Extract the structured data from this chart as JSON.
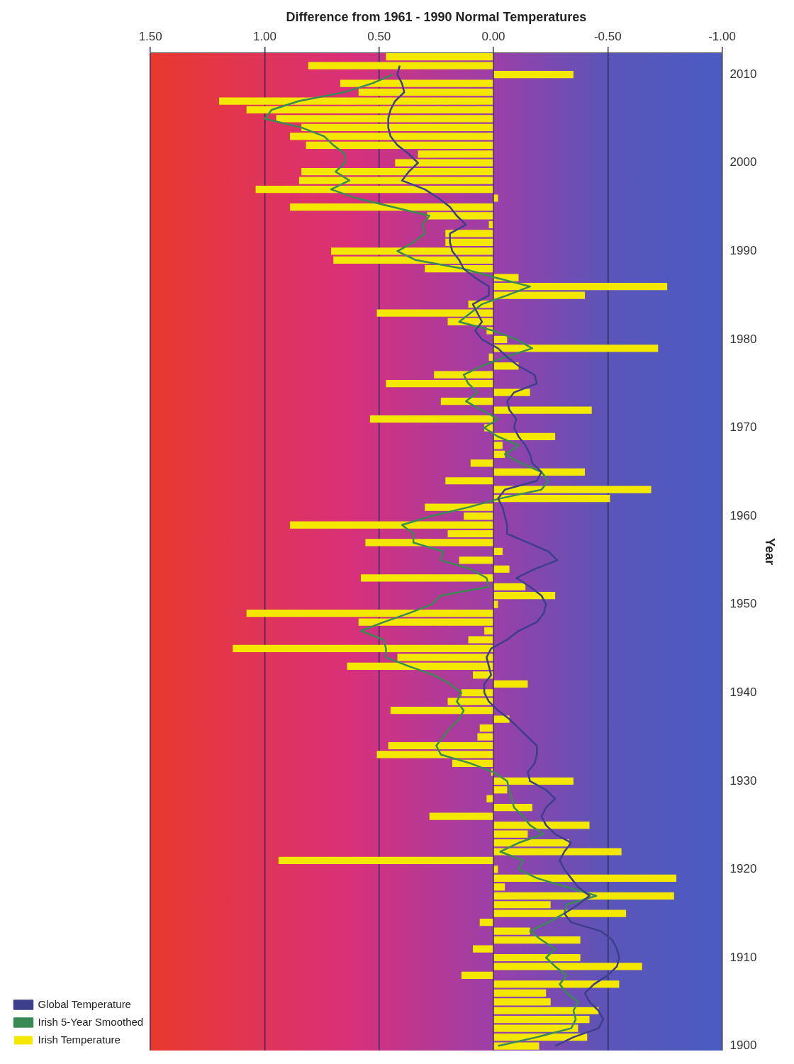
{
  "chart_data": {
    "type": "bar",
    "orientation": "horizontal",
    "xlabel": "Difference from 1961 - 1990 Normal Temperatures",
    "ylabel": "Year",
    "categories": [
      null,
      null,
      "2010",
      null,
      null,
      null,
      null,
      null,
      null,
      null,
      null,
      null,
      "2000",
      null,
      null,
      null,
      null,
      null,
      null,
      null,
      null,
      null,
      "1990",
      null,
      null,
      null,
      null,
      null,
      null,
      null,
      null,
      null,
      "1980",
      null,
      null,
      null,
      null,
      null,
      null,
      null,
      null,
      null,
      "1970",
      null,
      null,
      null,
      null,
      null,
      null,
      null,
      null,
      null,
      "1960",
      null,
      null,
      null,
      null,
      null,
      null,
      null,
      null,
      null,
      "1950",
      null,
      null,
      null,
      null,
      null,
      null,
      null,
      null,
      null,
      "1940",
      null,
      null,
      null,
      null,
      null,
      null,
      null,
      null,
      null,
      "1930",
      null,
      null,
      null,
      null,
      null,
      null,
      null,
      null,
      null,
      "1920",
      null,
      null,
      null,
      null,
      null,
      null,
      null,
      null,
      null,
      "1910",
      null,
      null,
      null,
      null,
      null,
      null,
      null,
      null,
      null,
      "1900"
    ],
    "series": [
      {
        "name": "Irish Temperature",
        "color": "#f5e800",
        "values": [
          0.47,
          0.81,
          -0.35,
          0.67,
          0.59,
          1.2,
          1.08,
          0.95,
          0.84,
          0.89,
          0.82,
          0.33,
          0.43,
          0.84,
          0.85,
          1.04,
          -0.02,
          0.89,
          0.29,
          0.02,
          0.21,
          0.21,
          0.71,
          0.7,
          0.3,
          -0.11,
          -0.76,
          -0.4,
          0.11,
          0.51,
          0.2,
          0.03,
          -0.06,
          -0.72,
          0.02,
          -0.11,
          0.26,
          0.47,
          -0.16,
          0.23,
          -0.43,
          0.54,
          0.04,
          -0.27,
          -0.04,
          -0.05,
          0.1,
          -0.4,
          0.21,
          -0.69,
          -0.51,
          0.3,
          0.13,
          0.89,
          0.2,
          0.56,
          -0.04,
          0.15,
          -0.07,
          0.58,
          -0.14,
          -0.27,
          -0.02,
          1.08,
          0.59,
          0.04,
          0.11,
          1.14,
          0.42,
          0.64,
          0.09,
          -0.15,
          0.14,
          0.2,
          0.45,
          -0.07,
          0.06,
          0.07,
          0.46,
          0.51,
          0.18,
          0.01,
          -0.35,
          -0.06,
          0.03,
          -0.17,
          0.28,
          -0.42,
          -0.15,
          -0.33,
          -0.56,
          0.94,
          -0.02,
          -0.8,
          -0.05,
          -0.79,
          -0.25,
          -0.58,
          0.06,
          -0.16,
          -0.38,
          0.09,
          -0.38,
          -0.65,
          0.14,
          -0.55,
          -0.23,
          -0.25,
          -0.46,
          -0.42,
          -0.37,
          -0.41,
          -0.2
        ]
      },
      {
        "name": "Global Temperature",
        "type": "line",
        "color": "#3d3f8c",
        "values": [
          null,
          0.41,
          0.42,
          0.4,
          0.39,
          0.43,
          0.45,
          0.46,
          0.46,
          0.45,
          0.42,
          0.37,
          0.33,
          0.37,
          0.4,
          0.3,
          0.24,
          0.19,
          0.16,
          0.12,
          0.19,
          0.19,
          0.18,
          0.15,
          0.13,
          0.08,
          0.02,
          0.02,
          0.09,
          0.07,
          0.05,
          0.08,
          0.05,
          -0.02,
          -0.06,
          -0.11,
          -0.18,
          -0.19,
          -0.09,
          -0.06,
          -0.07,
          -0.1,
          -0.09,
          -0.11,
          -0.14,
          -0.16,
          -0.17,
          -0.21,
          -0.19,
          -0.05,
          -0.02,
          -0.04,
          -0.05,
          -0.06,
          -0.06,
          -0.15,
          -0.24,
          -0.28,
          -0.18,
          -0.1,
          -0.16,
          -0.21,
          -0.23,
          -0.22,
          -0.19,
          -0.11,
          -0.06,
          0.01,
          0.03,
          0.02,
          0.01,
          0.04,
          0.04,
          0.02,
          -0.02,
          -0.07,
          -0.11,
          -0.15,
          -0.19,
          -0.19,
          -0.18,
          -0.15,
          -0.16,
          -0.23,
          -0.27,
          -0.23,
          -0.21,
          -0.23,
          -0.27,
          -0.34,
          -0.31,
          -0.29,
          -0.31,
          -0.34,
          -0.37,
          -0.42,
          -0.37,
          -0.31,
          -0.34,
          -0.47,
          -0.52,
          -0.54,
          -0.55,
          -0.54,
          -0.5,
          -0.44,
          -0.4,
          -0.42,
          -0.46,
          -0.48,
          -0.46,
          -0.35,
          -0.27
        ]
      },
      {
        "name": "Irish 5-Year Smoothed",
        "type": "line",
        "color": "#3a8a55",
        "values": [
          null,
          null,
          0.44,
          0.53,
          0.65,
          0.85,
          0.97,
          1.0,
          0.84,
          0.74,
          0.7,
          0.65,
          0.65,
          0.69,
          0.63,
          0.71,
          0.6,
          0.44,
          0.28,
          0.31,
          0.3,
          0.35,
          0.42,
          0.34,
          0.13,
          -0.01,
          -0.16,
          -0.06,
          0.05,
          0.1,
          0.15,
          0.0,
          -0.1,
          -0.17,
          -0.05,
          0.05,
          0.13,
          0.11,
          0.07,
          0.12,
          0.05,
          -0.02,
          0.04,
          -0.02,
          -0.11,
          -0.05,
          -0.12,
          -0.21,
          -0.24,
          -0.21,
          -0.03,
          0.11,
          0.27,
          0.4,
          0.35,
          0.35,
          0.22,
          0.23,
          0.1,
          0.03,
          0.02,
          0.23,
          0.27,
          0.37,
          0.48,
          0.58,
          0.48,
          0.47,
          0.47,
          0.37,
          0.26,
          0.19,
          0.14,
          0.16,
          0.13,
          0.15,
          0.19,
          0.22,
          0.25,
          0.23,
          0.1,
          0.0,
          -0.06,
          -0.07,
          -0.08,
          -0.09,
          -0.13,
          -0.16,
          -0.22,
          -0.11,
          -0.03,
          -0.13,
          -0.11,
          -0.19,
          -0.32,
          -0.45,
          -0.32,
          -0.31,
          -0.24,
          -0.16,
          -0.21,
          -0.27,
          -0.23,
          -0.27,
          -0.32,
          -0.29,
          -0.32,
          -0.37,
          -0.35,
          -0.36,
          -0.34,
          -0.19,
          -0.02
        ]
      }
    ],
    "xlim": [
      1.5,
      -1.0
    ],
    "xticks": [
      {
        "value": 1.5,
        "label": "1.50"
      },
      {
        "value": 1.0,
        "label": "1.00"
      },
      {
        "value": 0.5,
        "label": "0.50"
      },
      {
        "value": 0,
        "label": "0.00"
      },
      {
        "value": -0.5,
        "label": "-0.50"
      },
      {
        "value": -1.0,
        "label": "-1.00"
      }
    ],
    "grid": "x",
    "legend": "bottom left",
    "marker": "none",
    "line_style": "solid"
  }
}
